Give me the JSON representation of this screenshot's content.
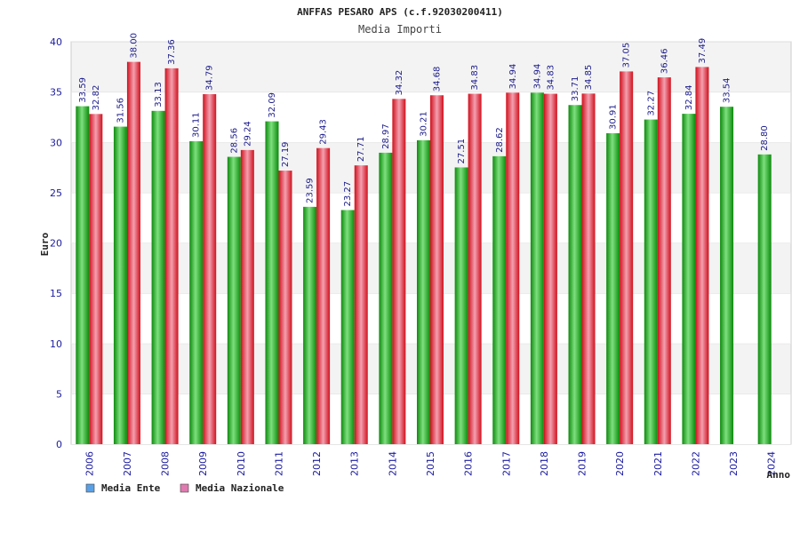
{
  "chart_data": {
    "type": "bar",
    "title": "ANFFAS PESARO APS (c.f.92030200411)",
    "subtitle": "Media Importi",
    "ylabel": "Euro",
    "xlabel": "Anno",
    "ylim": [
      0,
      40
    ],
    "yticks": [
      0,
      5,
      10,
      15,
      20,
      25,
      30,
      35,
      40
    ],
    "grid": "horizontal bands",
    "legend_position": "bottom-left",
    "categories": [
      "2006",
      "2007",
      "2008",
      "2009",
      "2010",
      "2011",
      "2012",
      "2013",
      "2014",
      "2015",
      "2016",
      "2017",
      "2018",
      "2019",
      "2020",
      "2021",
      "2022",
      "2023",
      "2024"
    ],
    "series": [
      {
        "name": "Media Ente",
        "legend_color": "#5aa0e6",
        "bar_color": "#18b418",
        "values": [
          33.59,
          31.56,
          33.13,
          30.11,
          28.56,
          32.09,
          23.59,
          23.27,
          28.97,
          30.21,
          27.51,
          28.62,
          34.94,
          33.71,
          30.91,
          32.27,
          32.84,
          33.54,
          28.8
        ],
        "labels": [
          "33.59",
          "31.56",
          "33.13",
          "30.11",
          "28.56",
          "32.09",
          "23.59",
          "23.27",
          "28.97",
          "30.21",
          "27.51",
          "28.62",
          "34.94",
          "33.71",
          "30.91",
          "32.27",
          "32.84",
          "33.54",
          "28.80"
        ]
      },
      {
        "name": "Media Nazionale",
        "legend_color": "#e07ab0",
        "bar_color": "#e8202c",
        "values": [
          32.82,
          38.0,
          37.36,
          34.79,
          29.24,
          27.19,
          29.43,
          27.71,
          34.32,
          34.68,
          34.83,
          34.94,
          34.83,
          34.85,
          37.05,
          36.46,
          37.49,
          null,
          null
        ],
        "labels": [
          "32.82",
          "38.00",
          "37.36",
          "34.79",
          "29.24",
          "27.19",
          "29.43",
          "27.71",
          "34.32",
          "34.68",
          "34.83",
          "34.94",
          "34.83",
          "34.85",
          "37.05",
          "36.46",
          "37.49",
          "",
          ""
        ]
      }
    ]
  }
}
